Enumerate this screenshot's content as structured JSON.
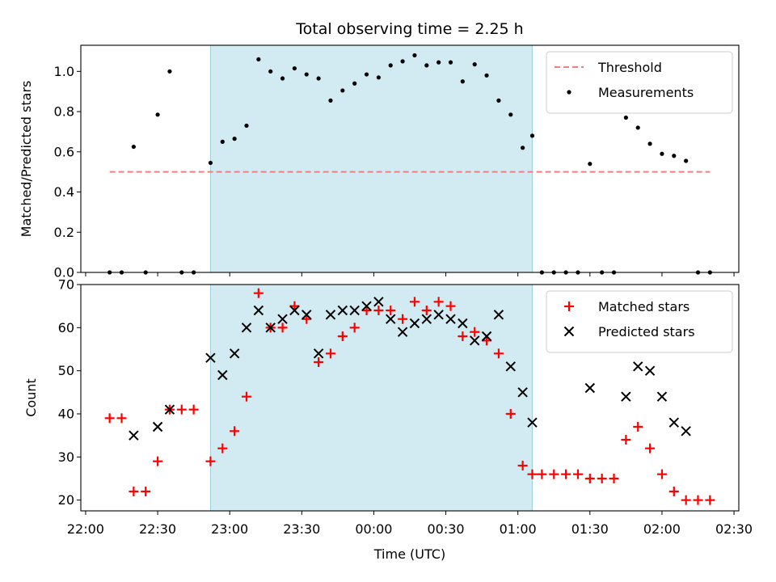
{
  "chart_data": [
    {
      "type": "scatter",
      "title": "Total observing time = 2.25 h",
      "xlabel": "",
      "ylabel": "Matched/Predicted stars",
      "xlim": [
        "21:58",
        "02:32"
      ],
      "ylim": [
        0,
        1.13
      ],
      "yticks": [
        "0.0",
        "0.2",
        "0.4",
        "0.6",
        "0.8",
        "1.0"
      ],
      "yticks_values": [
        0,
        0.2,
        0.4,
        0.6,
        0.8,
        1.0
      ],
      "shaded_region": {
        "start": "22:52",
        "end": "01:06",
        "color": "#add8e6"
      },
      "legend": {
        "position": "top-right"
      },
      "threshold": {
        "name": "Threshold",
        "value": 0.5,
        "start": "22:10",
        "end": "02:20",
        "color": "#f08080",
        "style": "dashed"
      },
      "series": [
        {
          "name": "Measurements",
          "marker": "dot",
          "color": "#000000",
          "points": [
            [
              "22:10",
              0.0
            ],
            [
              "22:15",
              0.0
            ],
            [
              "22:20",
              0.625
            ],
            [
              "22:25",
              0.0
            ],
            [
              "22:30",
              0.785
            ],
            [
              "22:35",
              1.0
            ],
            [
              "22:40",
              0.0
            ],
            [
              "22:45",
              0.0
            ],
            [
              "22:52",
              0.545
            ],
            [
              "22:57",
              0.65
            ],
            [
              "23:02",
              0.665
            ],
            [
              "23:07",
              0.73
            ],
            [
              "23:12",
              1.06
            ],
            [
              "23:17",
              1.0
            ],
            [
              "23:22",
              0.965
            ],
            [
              "23:27",
              1.015
            ],
            [
              "23:32",
              0.985
            ],
            [
              "23:37",
              0.965
            ],
            [
              "23:42",
              0.855
            ],
            [
              "23:47",
              0.905
            ],
            [
              "23:52",
              0.94
            ],
            [
              "23:57",
              0.985
            ],
            [
              "00:02",
              0.97
            ],
            [
              "00:07",
              1.03
            ],
            [
              "00:12",
              1.05
            ],
            [
              "00:17",
              1.08
            ],
            [
              "00:22",
              1.03
            ],
            [
              "00:27",
              1.045
            ],
            [
              "00:32",
              1.045
            ],
            [
              "00:37",
              0.95
            ],
            [
              "00:42",
              1.035
            ],
            [
              "00:47",
              0.98
            ],
            [
              "00:52",
              0.855
            ],
            [
              "00:57",
              0.785
            ],
            [
              "01:02",
              0.62
            ],
            [
              "01:06",
              0.68
            ],
            [
              "01:10",
              0.0
            ],
            [
              "01:15",
              0.0
            ],
            [
              "01:20",
              0.0
            ],
            [
              "01:25",
              0.0
            ],
            [
              "01:30",
              0.54
            ],
            [
              "01:35",
              0.0
            ],
            [
              "01:40",
              0.0
            ],
            [
              "01:45",
              0.77
            ],
            [
              "01:50",
              0.72
            ],
            [
              "01:55",
              0.64
            ],
            [
              "02:00",
              0.59
            ],
            [
              "02:05",
              0.58
            ],
            [
              "02:10",
              0.555
            ],
            [
              "02:15",
              0.0
            ],
            [
              "02:20",
              0.0
            ]
          ]
        }
      ]
    },
    {
      "type": "scatter",
      "title": "",
      "xlabel": "Time (UTC)",
      "ylabel": "Count",
      "xlim": [
        "21:58",
        "02:32"
      ],
      "ylim": [
        17.5,
        70
      ],
      "xticks": [
        "22:00",
        "22:30",
        "23:00",
        "23:30",
        "00:00",
        "00:30",
        "01:00",
        "01:30",
        "02:00",
        "02:30"
      ],
      "yticks": [
        "20",
        "30",
        "40",
        "50",
        "60",
        "70"
      ],
      "yticks_values": [
        20,
        30,
        40,
        50,
        60,
        70
      ],
      "shaded_region": {
        "start": "22:52",
        "end": "01:06",
        "color": "#add8e6"
      },
      "legend": {
        "position": "top-right"
      },
      "series": [
        {
          "name": "Matched stars",
          "marker": "plus",
          "color": "#ff0000",
          "points": [
            [
              "22:10",
              39
            ],
            [
              "22:15",
              39
            ],
            [
              "22:20",
              22
            ],
            [
              "22:25",
              22
            ],
            [
              "22:30",
              29
            ],
            [
              "22:35",
              41
            ],
            [
              "22:40",
              41
            ],
            [
              "22:45",
              41
            ],
            [
              "22:52",
              29
            ],
            [
              "22:57",
              32
            ],
            [
              "23:02",
              36
            ],
            [
              "23:07",
              44
            ],
            [
              "23:12",
              68
            ],
            [
              "23:17",
              60
            ],
            [
              "23:22",
              60
            ],
            [
              "23:27",
              65
            ],
            [
              "23:32",
              62
            ],
            [
              "23:37",
              52
            ],
            [
              "23:42",
              54
            ],
            [
              "23:47",
              58
            ],
            [
              "23:52",
              60
            ],
            [
              "23:57",
              64
            ],
            [
              "00:02",
              64
            ],
            [
              "00:07",
              64
            ],
            [
              "00:12",
              62
            ],
            [
              "00:17",
              66
            ],
            [
              "00:22",
              64
            ],
            [
              "00:27",
              66
            ],
            [
              "00:32",
              65
            ],
            [
              "00:37",
              58
            ],
            [
              "00:42",
              59
            ],
            [
              "00:47",
              57
            ],
            [
              "00:52",
              54
            ],
            [
              "00:57",
              40
            ],
            [
              "01:02",
              28
            ],
            [
              "01:06",
              26
            ],
            [
              "01:10",
              26
            ],
            [
              "01:15",
              26
            ],
            [
              "01:20",
              26
            ],
            [
              "01:25",
              26
            ],
            [
              "01:30",
              25
            ],
            [
              "01:35",
              25
            ],
            [
              "01:40",
              25
            ],
            [
              "01:45",
              34
            ],
            [
              "01:50",
              37
            ],
            [
              "01:55",
              32
            ],
            [
              "02:00",
              26
            ],
            [
              "02:05",
              22
            ],
            [
              "02:10",
              20
            ],
            [
              "02:15",
              20
            ],
            [
              "02:20",
              20
            ]
          ]
        },
        {
          "name": "Predicted stars",
          "marker": "x",
          "color": "#000000",
          "points": [
            [
              "22:20",
              35
            ],
            [
              "22:30",
              37
            ],
            [
              "22:35",
              41
            ],
            [
              "22:52",
              53
            ],
            [
              "22:57",
              49
            ],
            [
              "23:02",
              54
            ],
            [
              "23:07",
              60
            ],
            [
              "23:12",
              64
            ],
            [
              "23:17",
              60
            ],
            [
              "23:22",
              62
            ],
            [
              "23:27",
              64
            ],
            [
              "23:32",
              63
            ],
            [
              "23:37",
              54
            ],
            [
              "23:42",
              63
            ],
            [
              "23:47",
              64
            ],
            [
              "23:52",
              64
            ],
            [
              "23:57",
              65
            ],
            [
              "00:02",
              66
            ],
            [
              "00:07",
              62
            ],
            [
              "00:12",
              59
            ],
            [
              "00:17",
              61
            ],
            [
              "00:22",
              62
            ],
            [
              "00:27",
              63
            ],
            [
              "00:32",
              62
            ],
            [
              "00:37",
              61
            ],
            [
              "00:42",
              57
            ],
            [
              "00:47",
              58
            ],
            [
              "00:52",
              63
            ],
            [
              "00:57",
              51
            ],
            [
              "01:02",
              45
            ],
            [
              "01:06",
              38
            ],
            [
              "01:30",
              46
            ],
            [
              "01:45",
              44
            ],
            [
              "01:50",
              51
            ],
            [
              "01:55",
              50
            ],
            [
              "02:00",
              44
            ],
            [
              "02:05",
              38
            ],
            [
              "02:10",
              36
            ]
          ]
        }
      ]
    }
  ]
}
